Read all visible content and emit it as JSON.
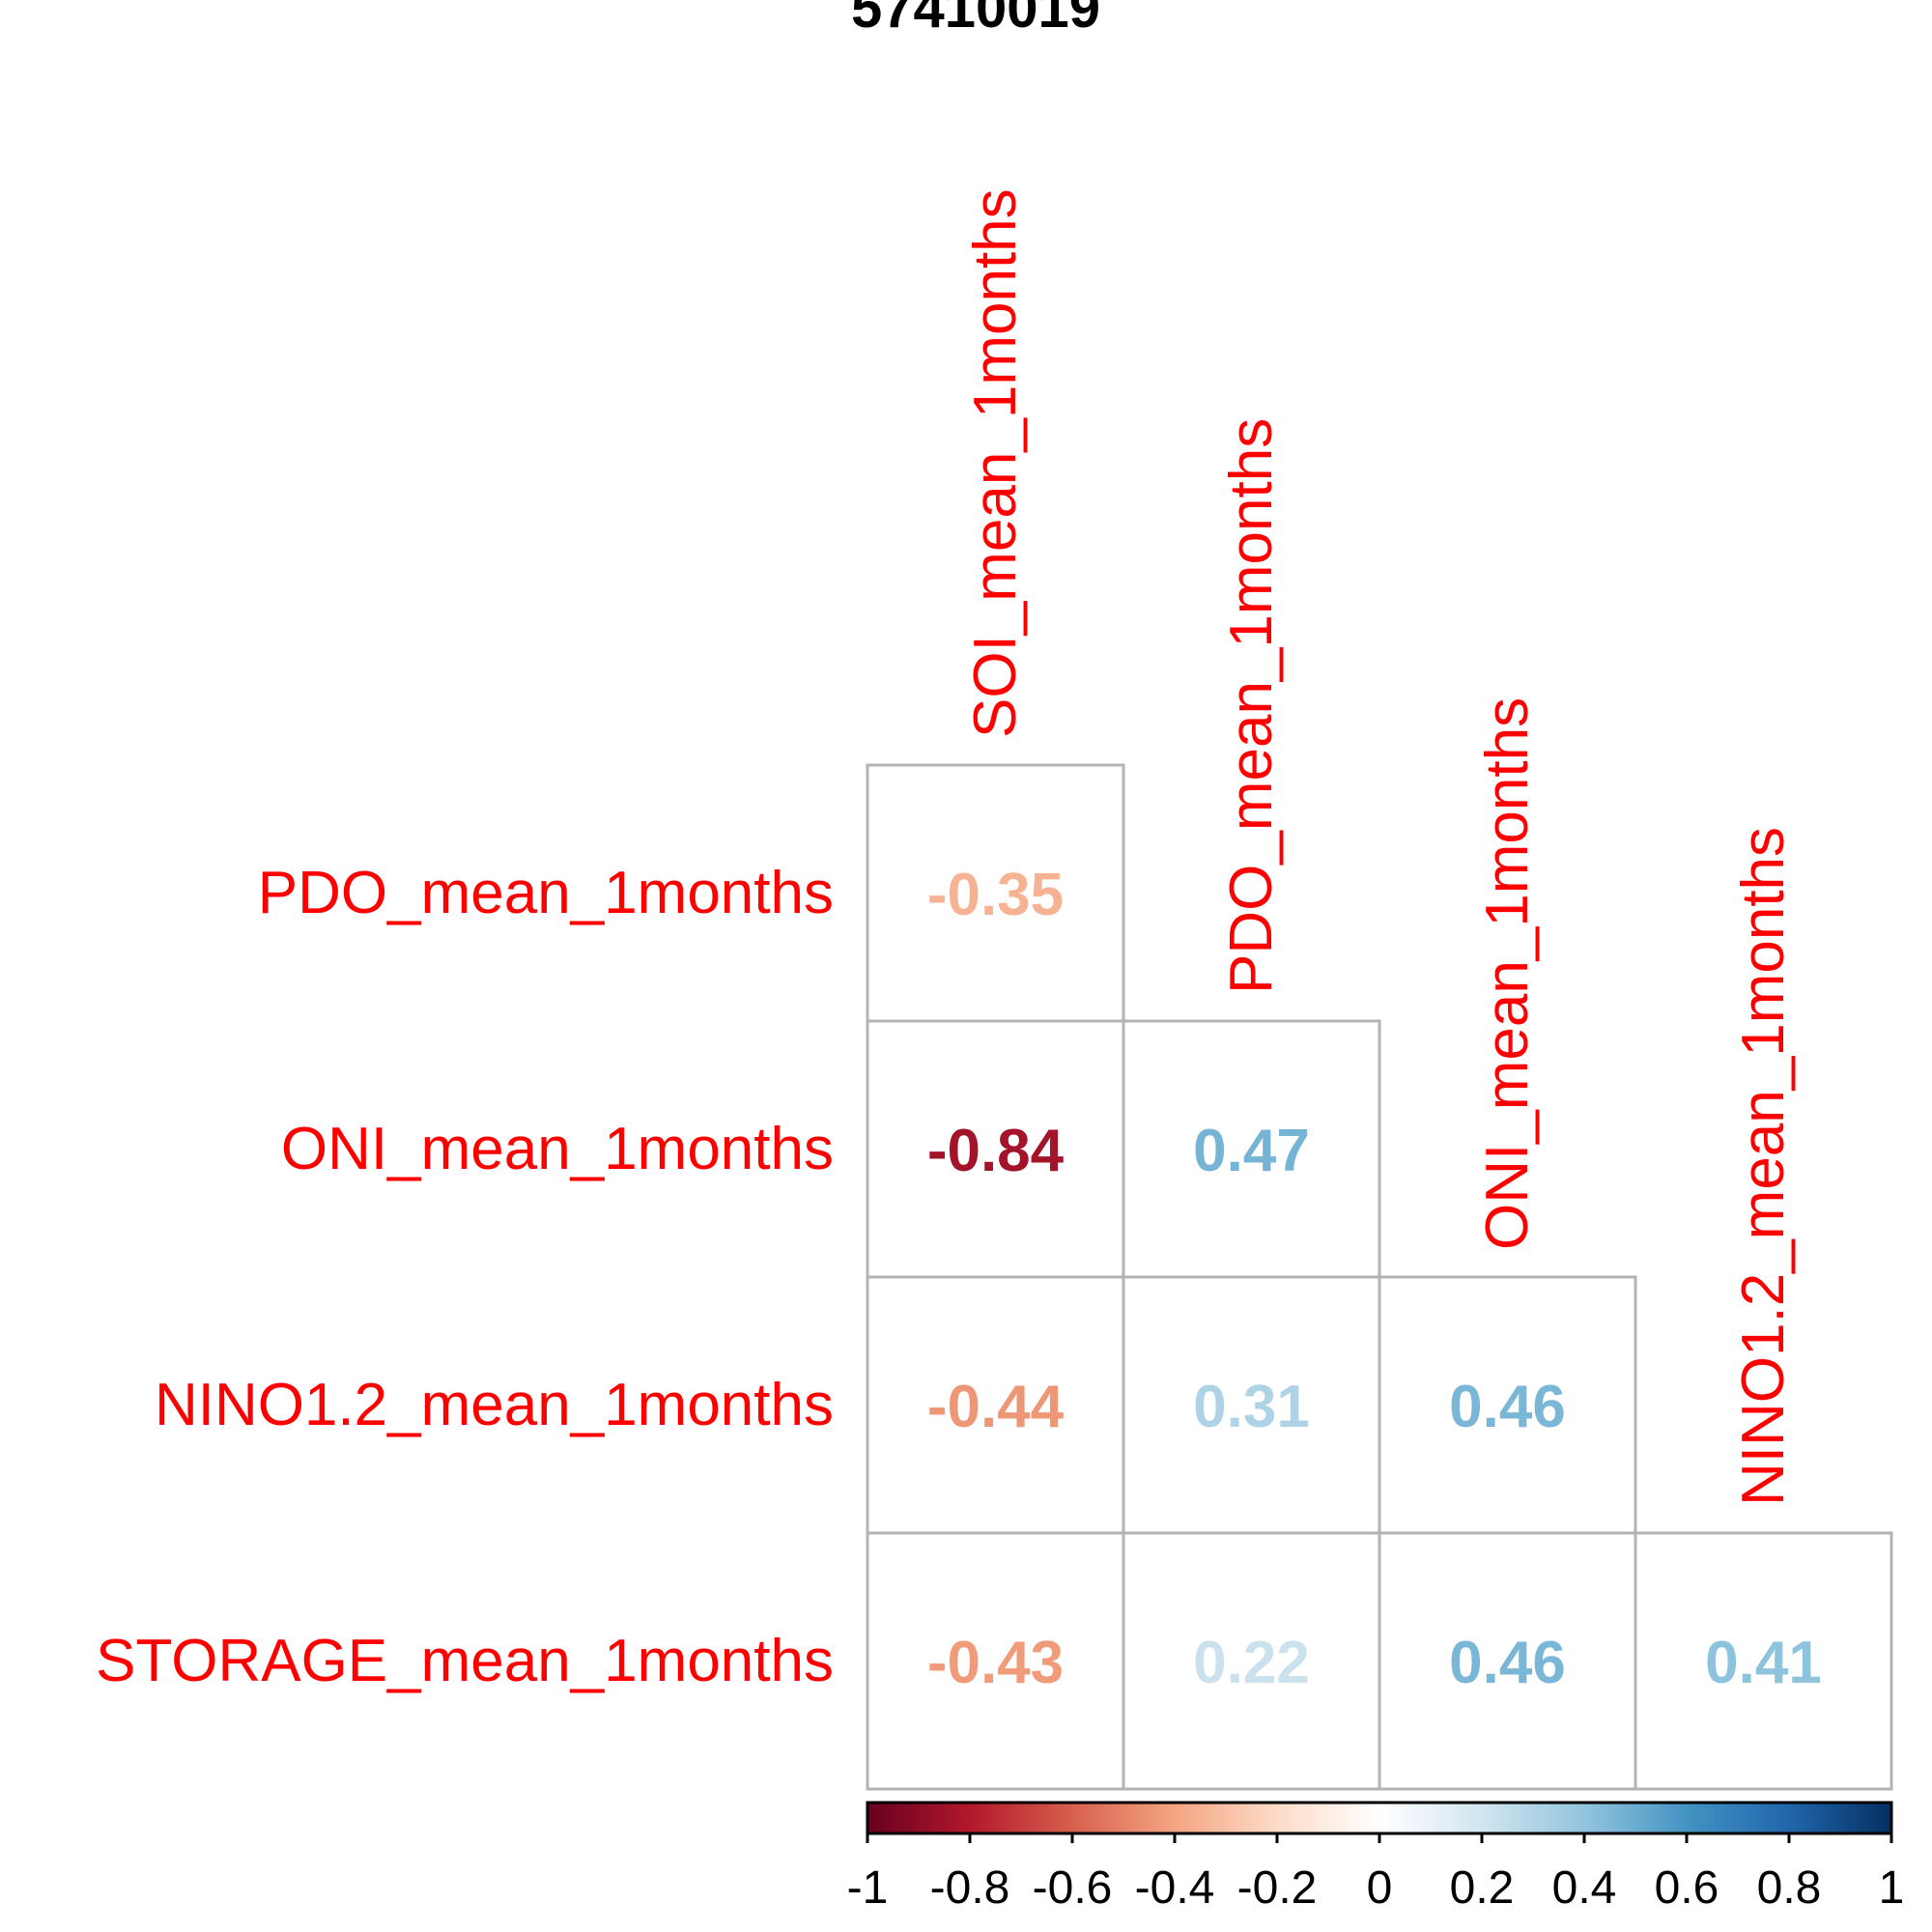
{
  "chart_data": {
    "type": "heatmap",
    "title": "57410019",
    "variables": [
      "SOI_mean_1months",
      "PDO_mean_1months",
      "ONI_mean_1months",
      "NINO1.2_mean_1months",
      "STORAGE_mean_1months"
    ],
    "columns": [
      "SOI_mean_1months",
      "PDO_mean_1months",
      "ONI_mean_1months",
      "NINO1.2_mean_1months"
    ],
    "rows": [
      "PDO_mean_1months",
      "ONI_mean_1months",
      "NINO1.2_mean_1months",
      "STORAGE_mean_1months"
    ],
    "values": [
      [
        -0.35,
        null,
        null,
        null
      ],
      [
        -0.84,
        0.47,
        null,
        null
      ],
      [
        -0.44,
        0.31,
        0.46,
        null
      ],
      [
        -0.43,
        0.22,
        0.46,
        0.41
      ]
    ],
    "value_labels": [
      [
        "-0.35",
        "",
        "",
        ""
      ],
      [
        "-0.84",
        "0.47",
        "",
        ""
      ],
      [
        "-0.44",
        "0.31",
        "0.46",
        ""
      ],
      [
        "-0.43",
        "0.22",
        "0.46",
        "0.41"
      ]
    ],
    "layout": "lower-triangle",
    "label_color": "#ff0000",
    "colorbar": {
      "range": [
        -1,
        1
      ],
      "ticks": [
        "-1",
        "-0.8",
        "-0.6",
        "-0.4",
        "-0.2",
        "0",
        "0.2",
        "0.4",
        "0.6",
        "0.8",
        "1"
      ],
      "colors": [
        "#67001f",
        "#b2182b",
        "#d6604d",
        "#f4a582",
        "#fddbc7",
        "#ffffff",
        "#d1e5f0",
        "#92c5de",
        "#4393c3",
        "#2166ac",
        "#053061"
      ],
      "placement": "bottom"
    }
  }
}
